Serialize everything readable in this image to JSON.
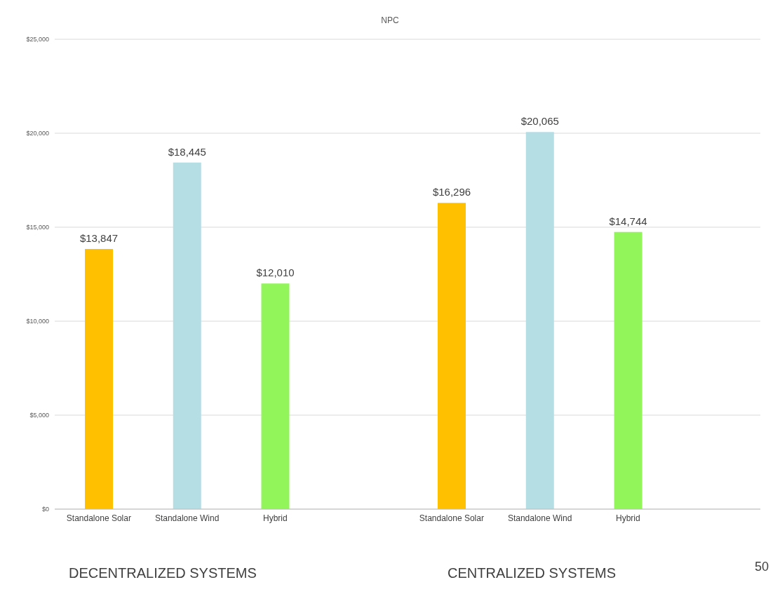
{
  "chart_data": {
    "type": "bar",
    "title": "NPC",
    "categories": [
      "Standalone Solar",
      "Standalone Wind",
      "Hybrid",
      null,
      "Standalone Solar",
      "Standalone Wind",
      "Hybrid",
      null
    ],
    "values": [
      13847,
      18445,
      12010,
      null,
      16296,
      20065,
      14744,
      null
    ],
    "colors": [
      "#ffc000",
      "#b4dde4",
      "#92f65a",
      null,
      "#ffc000",
      "#b4dde4",
      "#92f65a",
      null
    ],
    "value_labels": [
      "$13,847",
      "$18,445",
      "$12,010",
      null,
      "$16,296",
      "$20,065",
      "$14,744",
      null
    ],
    "ylim": [
      0,
      25000
    ],
    "yticks": [
      {
        "value": 0,
        "label": "$0"
      },
      {
        "value": 5000,
        "label": "$5,000"
      },
      {
        "value": 10000,
        "label": "$10,000"
      },
      {
        "value": 15000,
        "label": "$15,000"
      },
      {
        "value": 20000,
        "label": "$20,000"
      },
      {
        "value": 25000,
        "label": "$25,000"
      }
    ],
    "grid": "y",
    "legend": false,
    "annotations": [
      "DECENTRALIZED SYSTEMS",
      "CENTRALIZED SYSTEMS",
      "50"
    ]
  }
}
